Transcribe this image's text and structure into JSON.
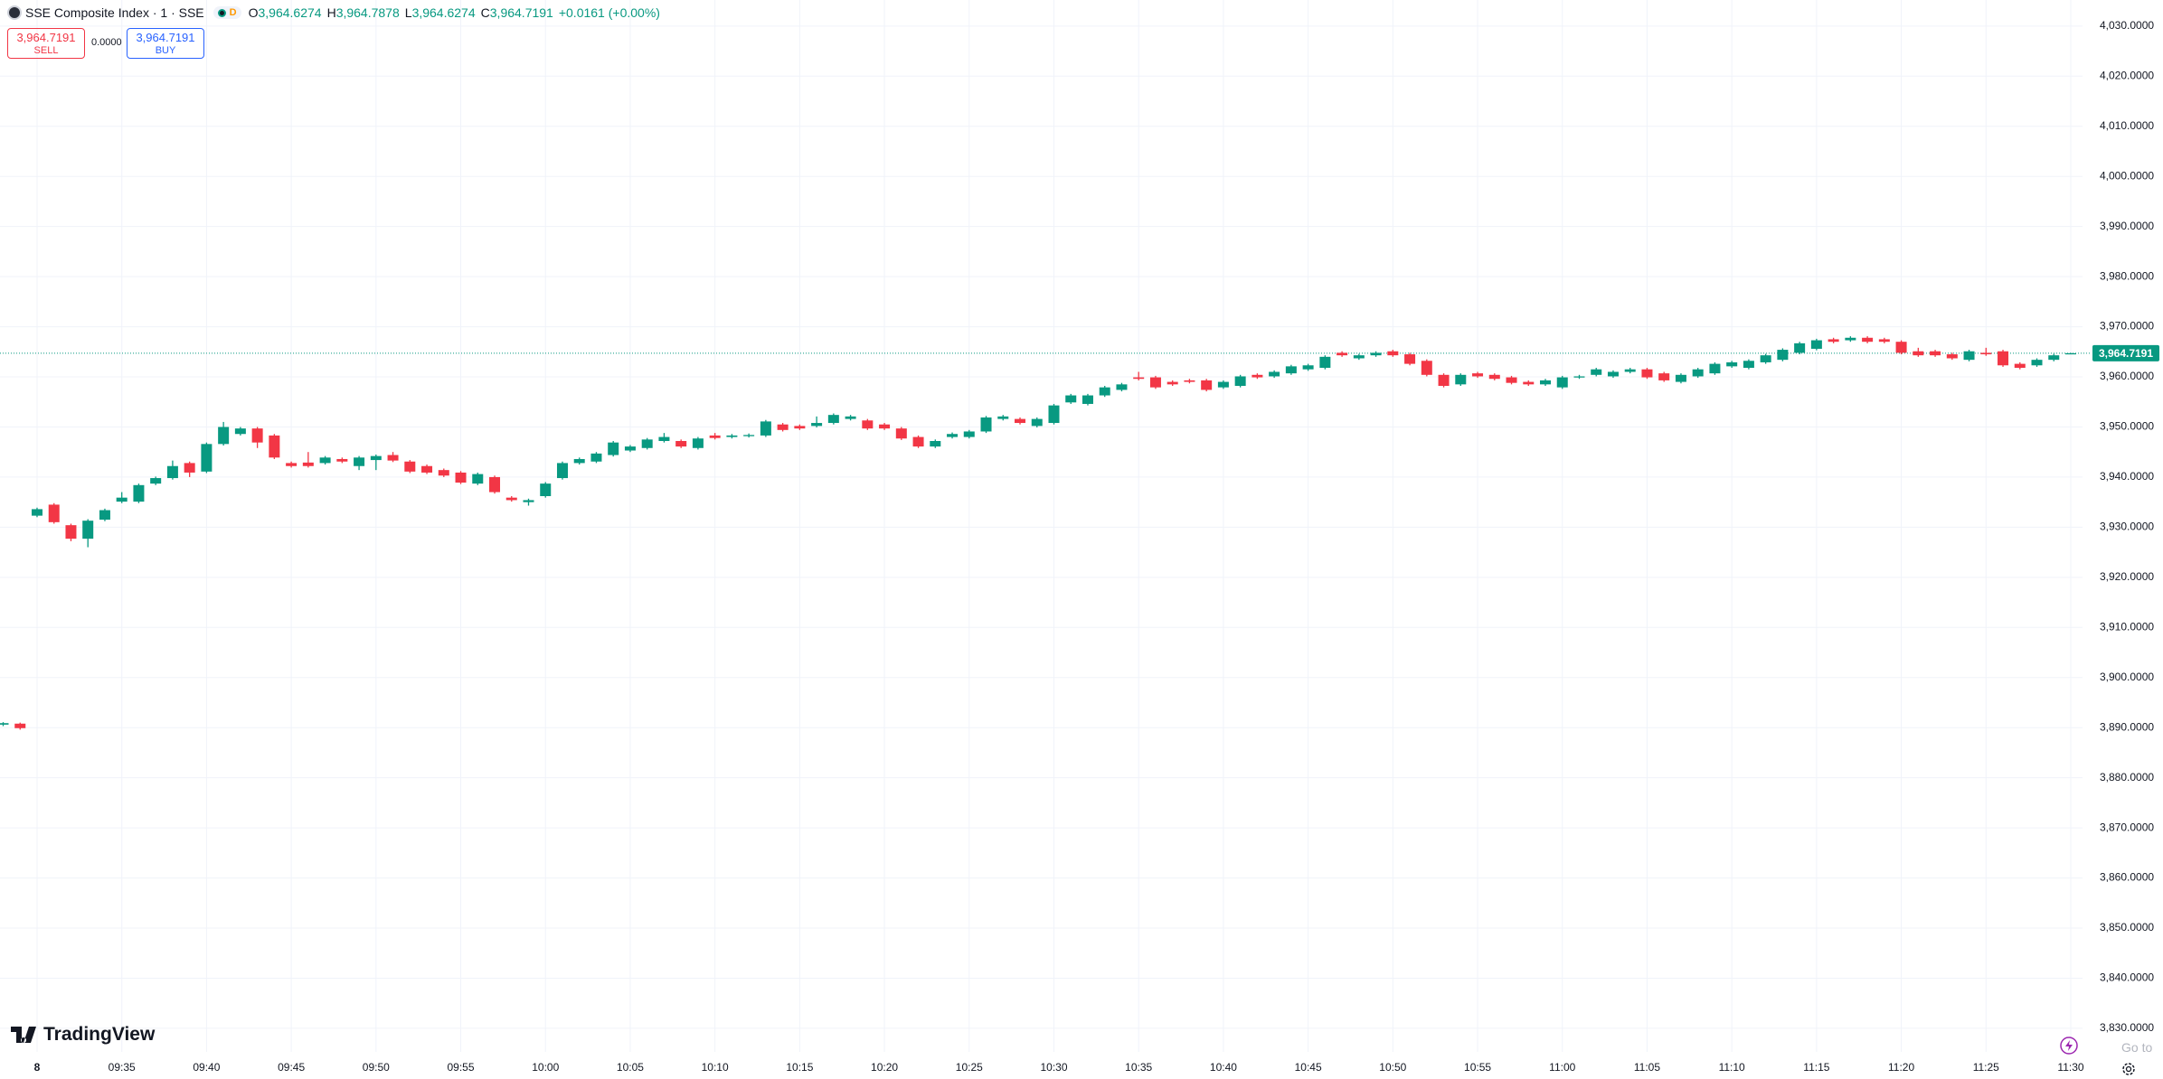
{
  "header": {
    "title": "SSE Composite Index · 1 · SSE",
    "badge": "D",
    "o_label": "O",
    "o": "3,964.6274",
    "h_label": "H",
    "h": "3,964.7878",
    "l_label": "L",
    "l": "3,964.6274",
    "c_label": "C",
    "c": "3,964.7191",
    "change": "+0.0161 (+0.00%)"
  },
  "trade": {
    "sell_price": "3,964.7191",
    "sell": "SELL",
    "spread": "0.0000",
    "buy_price": "3,964.7191",
    "buy": "BUY"
  },
  "footer": {
    "logo": "TradingView",
    "goto": "Go to"
  },
  "chart_data": {
    "type": "candlestick",
    "up_color": "#089981",
    "down_color": "#f23645",
    "grid": true,
    "xlim": [
      0,
      122
    ],
    "ylim": [
      3825.3,
      4035.2
    ],
    "xticks": [
      {
        "value": 2,
        "label": "8"
      },
      {
        "value": 7,
        "label": "09:35"
      },
      {
        "value": 12,
        "label": "09:40"
      },
      {
        "value": 17,
        "label": "09:45"
      },
      {
        "value": 22,
        "label": "09:50"
      },
      {
        "value": 27,
        "label": "09:55"
      },
      {
        "value": 32,
        "label": "10:00"
      },
      {
        "value": 37,
        "label": "10:05"
      },
      {
        "value": 42,
        "label": "10:10"
      },
      {
        "value": 47,
        "label": "10:15"
      },
      {
        "value": 52,
        "label": "10:20"
      },
      {
        "value": 57,
        "label": "10:25"
      },
      {
        "value": 62,
        "label": "10:30"
      },
      {
        "value": 67,
        "label": "10:35"
      },
      {
        "value": 72,
        "label": "10:40"
      },
      {
        "value": 77,
        "label": "10:45"
      },
      {
        "value": 82,
        "label": "10:50"
      },
      {
        "value": 87,
        "label": "10:55"
      },
      {
        "value": 92,
        "label": "11:00"
      },
      {
        "value": 97,
        "label": "11:05"
      },
      {
        "value": 102,
        "label": "11:10"
      },
      {
        "value": 107,
        "label": "11:15"
      },
      {
        "value": 112,
        "label": "11:20"
      },
      {
        "value": 117,
        "label": "11:25"
      },
      {
        "value": 122,
        "label": "11:30"
      }
    ],
    "yticks": [
      {
        "value": 3830,
        "label": "3,830.0000"
      },
      {
        "value": 3840,
        "label": "3,840.0000"
      },
      {
        "value": 3850,
        "label": "3,850.0000"
      },
      {
        "value": 3860,
        "label": "3,860.0000"
      },
      {
        "value": 3870,
        "label": "3,870.0000"
      },
      {
        "value": 3880,
        "label": "3,880.0000"
      },
      {
        "value": 3890,
        "label": "3,890.0000"
      },
      {
        "value": 3900,
        "label": "3,900.0000"
      },
      {
        "value": 3910,
        "label": "3,910.0000"
      },
      {
        "value": 3920,
        "label": "3,920.0000"
      },
      {
        "value": 3930,
        "label": "3,930.0000"
      },
      {
        "value": 3940,
        "label": "3,940.0000"
      },
      {
        "value": 3950,
        "label": "3,950.0000"
      },
      {
        "value": 3960,
        "label": "3,960.0000"
      },
      {
        "value": 3970,
        "label": "3,970.0000"
      },
      {
        "value": 3980,
        "label": "3,980.0000"
      },
      {
        "value": 3990,
        "label": "3,990.0000"
      },
      {
        "value": 4000,
        "label": "4,000.0000"
      },
      {
        "value": 4010,
        "label": "4,010.0000"
      },
      {
        "value": 4020,
        "label": "4,020.0000"
      },
      {
        "value": 4030,
        "label": "4,030.0000"
      }
    ],
    "last_price": {
      "value": 3964.7191,
      "label": "3,964.7191"
    },
    "open": [
      3890.6,
      3890.8,
      3932.3,
      3934.5,
      3930.4,
      3927.7,
      3931.5,
      3935.1,
      3935.1,
      3938.7,
      3939.8,
      3942.8,
      3941.1,
      3946.6,
      3948.6,
      3949.7,
      3948.3,
      3942.8,
      3942.9,
      3942.8,
      3943.6,
      3942.2,
      3943.4,
      3944.4,
      3943.1,
      3942.2,
      3941.4,
      3940.9,
      3938.7,
      3940.0,
      3935.9,
      3935.0,
      3936.2,
      3939.8,
      3942.8,
      3943.1,
      3944.4,
      3945.3,
      3945.8,
      3947.2,
      3947.2,
      3945.8,
      3948.3,
      3948.0,
      3948.2,
      3948.3,
      3950.5,
      3950.2,
      3950.2,
      3950.8,
      3951.6,
      3951.3,
      3950.5,
      3949.7,
      3948.0,
      3946.1,
      3948.0,
      3948.0,
      3949.1,
      3951.6,
      3951.6,
      3950.2,
      3950.8,
      3954.9,
      3954.6,
      3956.3,
      3957.4,
      3959.9,
      3959.9,
      3959.0,
      3959.3,
      3959.3,
      3957.9,
      3958.2,
      3960.4,
      3960.1,
      3960.7,
      3961.5,
      3961.8,
      3964.8,
      3963.7,
      3964.3,
      3965.1,
      3964.5,
      3963.2,
      3960.4,
      3958.5,
      3960.7,
      3960.4,
      3959.9,
      3959.0,
      3958.5,
      3957.9,
      3959.9,
      3960.4,
      3960.1,
      3961.0,
      3961.5,
      3960.7,
      3959.0,
      3960.1,
      3960.7,
      3962.1,
      3961.8,
      3962.9,
      3963.4,
      3964.8,
      3965.6,
      3967.5,
      3967.3,
      3967.8,
      3967.5,
      3967.0,
      3965.1,
      3965.1,
      3964.5,
      3963.4,
      3964.8,
      3965.1,
      3962.6,
      3962.3,
      3963.4,
      3964.6274
    ],
    "high": [
      3891.1,
      3891.0,
      3933.9,
      3934.8,
      3930.7,
      3931.6,
      3933.7,
      3937.0,
      3938.7,
      3940.1,
      3943.3,
      3943.1,
      3946.9,
      3951.0,
      3950.0,
      3950.0,
      3948.6,
      3943.1,
      3945.0,
      3944.2,
      3943.9,
      3944.2,
      3944.5,
      3945.0,
      3943.4,
      3942.5,
      3941.7,
      3941.2,
      3940.9,
      3940.3,
      3936.2,
      3935.7,
      3939.0,
      3943.1,
      3943.9,
      3945.0,
      3947.2,
      3946.4,
      3947.8,
      3948.8,
      3947.5,
      3948.0,
      3948.8,
      3948.6,
      3948.7,
      3951.4,
      3950.8,
      3950.5,
      3952.1,
      3952.7,
      3952.4,
      3951.6,
      3950.8,
      3950.0,
      3948.3,
      3947.5,
      3948.9,
      3949.4,
      3952.2,
      3952.4,
      3951.9,
      3951.9,
      3954.6,
      3956.6,
      3956.6,
      3958.2,
      3958.8,
      3961.0,
      3960.2,
      3959.3,
      3959.6,
      3959.6,
      3959.3,
      3960.4,
      3960.7,
      3961.3,
      3962.4,
      3962.6,
      3964.3,
      3965.1,
      3964.6,
      3965.1,
      3965.4,
      3964.8,
      3963.5,
      3960.7,
      3960.7,
      3961.0,
      3960.7,
      3960.2,
      3959.3,
      3959.6,
      3960.2,
      3960.4,
      3961.8,
      3961.3,
      3961.8,
      3961.8,
      3961.0,
      3960.7,
      3961.8,
      3962.9,
      3963.2,
      3963.5,
      3964.6,
      3965.7,
      3967.0,
      3967.6,
      3967.8,
      3968.1,
      3968.1,
      3967.8,
      3967.3,
      3965.8,
      3965.4,
      3964.8,
      3965.4,
      3965.8,
      3965.4,
      3962.9,
      3963.7,
      3964.6,
      3964.7878
    ],
    "low": [
      3890.3,
      3889.6,
      3932.0,
      3930.7,
      3927.2,
      3926.0,
      3931.2,
      3934.8,
      3934.8,
      3938.4,
      3939.5,
      3940.0,
      3940.8,
      3946.3,
      3948.3,
      3945.8,
      3943.6,
      3941.9,
      3941.9,
      3942.5,
      3942.8,
      3941.4,
      3941.4,
      3943.0,
      3940.8,
      3940.6,
      3940.0,
      3938.6,
      3938.4,
      3936.7,
      3935.1,
      3934.3,
      3935.9,
      3939.5,
      3942.5,
      3942.8,
      3944.1,
      3945.0,
      3945.5,
      3946.9,
      3945.8,
      3945.5,
      3947.5,
      3947.7,
      3947.9,
      3948.0,
      3949.1,
      3949.4,
      3949.9,
      3950.5,
      3951.3,
      3949.4,
      3949.4,
      3947.4,
      3945.8,
      3945.8,
      3947.7,
      3947.7,
      3948.8,
      3951.3,
      3950.5,
      3949.9,
      3950.5,
      3954.6,
      3954.3,
      3956.0,
      3957.1,
      3959.3,
      3957.6,
      3958.2,
      3958.7,
      3957.1,
      3957.6,
      3957.9,
      3959.6,
      3959.8,
      3960.4,
      3961.2,
      3961.5,
      3964.0,
      3963.4,
      3964.0,
      3964.0,
      3962.3,
      3960.1,
      3957.9,
      3958.2,
      3959.8,
      3959.3,
      3958.5,
      3958.2,
      3958.2,
      3957.6,
      3959.6,
      3960.1,
      3959.8,
      3960.7,
      3959.6,
      3959.0,
      3958.7,
      3959.8,
      3960.4,
      3961.8,
      3961.5,
      3962.6,
      3963.1,
      3964.5,
      3965.3,
      3966.7,
      3967.0,
      3966.7,
      3966.7,
      3964.5,
      3964.0,
      3964.0,
      3963.4,
      3963.1,
      3964.2,
      3962.0,
      3961.5,
      3962.0,
      3963.1,
      3964.6274
    ],
    "close": [
      3890.9,
      3889.9,
      3933.6,
      3931.0,
      3927.7,
      3931.3,
      3933.4,
      3935.9,
      3938.4,
      3939.8,
      3942.2,
      3940.9,
      3946.6,
      3950.0,
      3949.7,
      3946.9,
      3943.9,
      3942.2,
      3942.2,
      3943.9,
      3943.1,
      3943.9,
      3944.2,
      3943.3,
      3941.1,
      3940.9,
      3940.3,
      3938.9,
      3940.6,
      3937.0,
      3935.4,
      3935.4,
      3938.7,
      3942.8,
      3943.6,
      3944.7,
      3946.9,
      3946.1,
      3947.5,
      3948.0,
      3946.1,
      3947.7,
      3947.8,
      3948.3,
      3948.4,
      3951.1,
      3949.4,
      3949.7,
      3950.8,
      3952.4,
      3952.1,
      3949.7,
      3949.7,
      3947.7,
      3946.1,
      3947.2,
      3948.6,
      3949.1,
      3951.9,
      3952.1,
      3950.8,
      3951.6,
      3954.3,
      3956.3,
      3956.3,
      3957.9,
      3958.5,
      3959.6,
      3957.9,
      3958.5,
      3959.0,
      3957.4,
      3959.0,
      3960.1,
      3959.9,
      3961.0,
      3962.1,
      3962.3,
      3964.0,
      3964.3,
      3964.3,
      3964.8,
      3964.3,
      3962.6,
      3960.4,
      3958.2,
      3960.4,
      3960.1,
      3959.6,
      3958.8,
      3958.5,
      3959.3,
      3959.9,
      3960.1,
      3961.5,
      3961.0,
      3961.5,
      3959.9,
      3959.3,
      3960.4,
      3961.5,
      3962.6,
      3962.9,
      3963.2,
      3964.3,
      3965.4,
      3966.7,
      3967.3,
      3967.0,
      3967.8,
      3967.0,
      3967.0,
      3964.8,
      3964.3,
      3964.3,
      3963.7,
      3965.1,
      3964.5,
      3962.3,
      3961.8,
      3963.4,
      3964.3,
      3964.7191
    ]
  }
}
